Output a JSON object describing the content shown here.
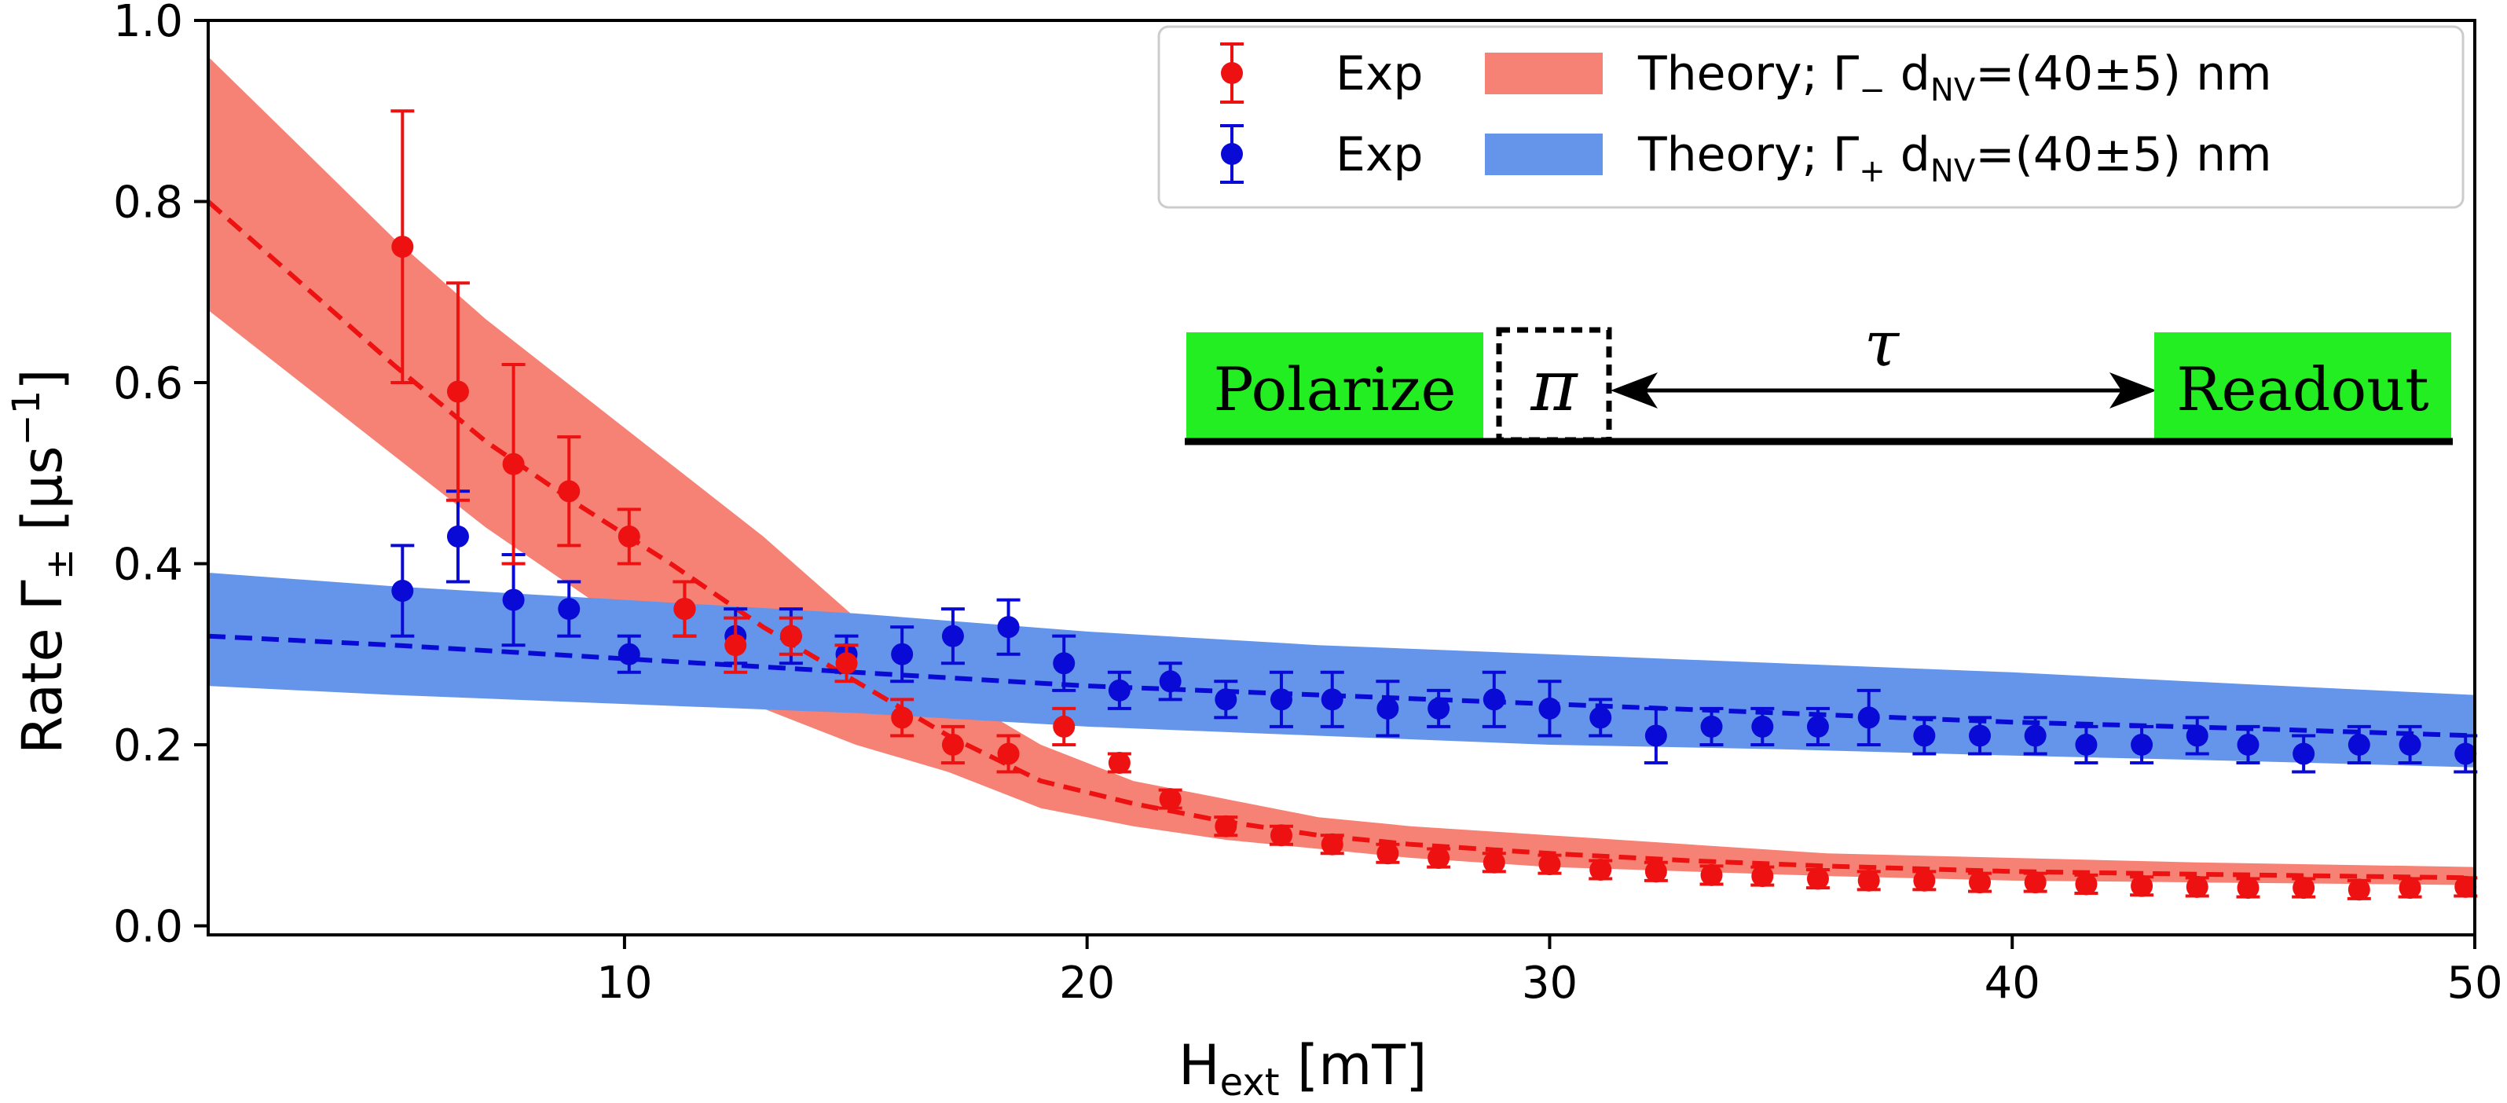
{
  "chart_data": {
    "type": "scatter",
    "xlabel": "H",
    "xlabel_sub": "ext",
    "xlabel_unit": " [mT]",
    "ylabel": "Rate  Γ",
    "ylabel_sub": "±",
    "ylabel_unit": " [μs",
    "ylabel_sup": "−1",
    "ylabel_close": "]",
    "xlim": [
      1,
      50
    ],
    "ylim": [
      -0.01,
      1.0
    ],
    "xticks": [
      10,
      20,
      30,
      40,
      50
    ],
    "xtick_labels": [
      "10",
      "20",
      "30",
      "40",
      "50"
    ],
    "yticks": [
      0.0,
      0.2,
      0.4,
      0.6,
      0.8,
      1.0
    ],
    "ytick_labels": [
      "0.0",
      "0.2",
      "0.4",
      "0.6",
      "0.8",
      "1.0"
    ],
    "series": [
      {
        "name": "Exp",
        "kind": "points",
        "color": "#ee1111",
        "x": [
          5.2,
          6.4,
          7.6,
          8.8,
          10.1,
          11.3,
          12.4,
          13.6,
          14.8,
          16.0,
          17.1,
          18.3,
          19.5,
          20.7,
          21.8,
          23.0,
          24.2,
          25.3,
          26.5,
          27.6,
          28.8,
          30.0,
          31.1,
          32.3,
          33.5,
          34.6,
          35.8,
          36.9,
          38.1,
          39.3,
          40.5,
          41.6,
          42.8,
          44.0,
          45.1,
          46.3,
          47.5,
          48.6,
          49.8
        ],
        "y": [
          0.75,
          0.59,
          0.51,
          0.48,
          0.43,
          0.35,
          0.31,
          0.32,
          0.29,
          0.23,
          0.2,
          0.19,
          0.22,
          0.18,
          0.14,
          0.11,
          0.1,
          0.09,
          0.08,
          0.075,
          0.07,
          0.068,
          0.062,
          0.06,
          0.056,
          0.055,
          0.052,
          0.05,
          0.05,
          0.048,
          0.048,
          0.046,
          0.044,
          0.043,
          0.042,
          0.042,
          0.04,
          0.042,
          0.043
        ],
        "err": [
          0.15,
          0.12,
          0.11,
          0.06,
          0.03,
          0.03,
          0.03,
          0.02,
          0.02,
          0.02,
          0.02,
          0.02,
          0.02,
          0.01,
          0.01,
          0.01,
          0.01,
          0.01,
          0.01,
          0.01,
          0.01,
          0.01,
          0.01,
          0.01,
          0.01,
          0.01,
          0.01,
          0.01,
          0.01,
          0.01,
          0.01,
          0.01,
          0.01,
          0.01,
          0.01,
          0.01,
          0.01,
          0.01,
          0.01
        ]
      },
      {
        "name": "Exp",
        "kind": "points",
        "color": "#0a0ad6",
        "x": [
          5.2,
          6.4,
          7.6,
          8.8,
          10.1,
          11.3,
          12.4,
          13.6,
          14.8,
          16.0,
          17.1,
          18.3,
          19.5,
          20.7,
          21.8,
          23.0,
          24.2,
          25.3,
          26.5,
          27.6,
          28.8,
          30.0,
          31.1,
          32.3,
          33.5,
          34.6,
          35.8,
          36.9,
          38.1,
          39.3,
          40.5,
          41.6,
          42.8,
          44.0,
          45.1,
          46.3,
          47.5,
          48.6,
          49.8
        ],
        "y": [
          0.37,
          0.43,
          0.36,
          0.35,
          0.3,
          0.35,
          0.32,
          0.32,
          0.3,
          0.3,
          0.32,
          0.33,
          0.29,
          0.26,
          0.27,
          0.25,
          0.25,
          0.25,
          0.24,
          0.24,
          0.25,
          0.24,
          0.23,
          0.21,
          0.22,
          0.22,
          0.22,
          0.23,
          0.21,
          0.21,
          0.21,
          0.2,
          0.2,
          0.21,
          0.2,
          0.19,
          0.2,
          0.2,
          0.19
        ],
        "err": [
          0.05,
          0.05,
          0.05,
          0.03,
          0.02,
          0.03,
          0.03,
          0.03,
          0.02,
          0.03,
          0.03,
          0.03,
          0.03,
          0.02,
          0.02,
          0.02,
          0.03,
          0.03,
          0.03,
          0.02,
          0.03,
          0.03,
          0.02,
          0.03,
          0.02,
          0.02,
          0.02,
          0.03,
          0.02,
          0.02,
          0.02,
          0.02,
          0.02,
          0.02,
          0.02,
          0.02,
          0.02,
          0.02,
          0.02
        ]
      }
    ],
    "bands": [
      {
        "name": "Theory; Γ",
        "sub": "−",
        "suffix": " d",
        "suffix_sub": "NV",
        "suffix_end": "=(40±5) nm",
        "color": "#f58275",
        "dash_color": "#ee1111",
        "x": [
          1,
          3,
          5,
          7,
          9,
          11,
          13,
          15,
          17,
          19,
          21,
          23,
          25,
          27,
          30,
          33,
          36,
          40,
          44,
          50
        ],
        "center": [
          0.8,
          0.71,
          0.62,
          0.535,
          0.465,
          0.4,
          0.33,
          0.27,
          0.21,
          0.16,
          0.135,
          0.115,
          0.1,
          0.09,
          0.08,
          0.072,
          0.066,
          0.06,
          0.057,
          0.053
        ],
        "upper": [
          0.96,
          0.86,
          0.76,
          0.67,
          0.59,
          0.51,
          0.43,
          0.34,
          0.26,
          0.2,
          0.16,
          0.14,
          0.12,
          0.11,
          0.1,
          0.09,
          0.08,
          0.075,
          0.07,
          0.065
        ],
        "lower": [
          0.68,
          0.6,
          0.52,
          0.44,
          0.37,
          0.3,
          0.24,
          0.2,
          0.17,
          0.13,
          0.11,
          0.095,
          0.085,
          0.075,
          0.065,
          0.06,
          0.055,
          0.05,
          0.048,
          0.045
        ]
      },
      {
        "name": "Theory; Γ",
        "sub": "+",
        "suffix": " d",
        "suffix_sub": "NV",
        "suffix_end": "=(40±5) nm",
        "color": "#6495ea",
        "dash_color": "#0a0ad6",
        "x": [
          1,
          5,
          10,
          15,
          20,
          25,
          30,
          35,
          40,
          45,
          50
        ],
        "center": [
          0.32,
          0.31,
          0.295,
          0.28,
          0.265,
          0.255,
          0.245,
          0.235,
          0.225,
          0.218,
          0.21
        ],
        "upper": [
          0.39,
          0.375,
          0.36,
          0.345,
          0.325,
          0.31,
          0.3,
          0.29,
          0.28,
          0.267,
          0.255
        ],
        "lower": [
          0.265,
          0.255,
          0.245,
          0.235,
          0.22,
          0.21,
          0.2,
          0.195,
          0.188,
          0.182,
          0.175
        ]
      }
    ],
    "inset": {
      "polarize": "Polarize",
      "pi": "π",
      "tau": "τ",
      "readout": "Readout",
      "box_color": "#22ee22"
    }
  }
}
